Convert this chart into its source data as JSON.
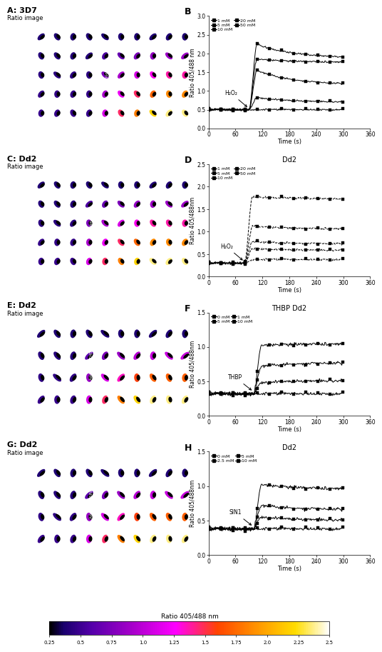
{
  "panel_B": {
    "title": "",
    "xlabel": "Time (s)",
    "ylabel": "Ratio 405/488 nm",
    "annotation": "H₂O₂",
    "ylim": [
      0.0,
      3.0
    ],
    "xlim": [
      0,
      360
    ],
    "xticks": [
      0,
      60,
      120,
      180,
      240,
      300,
      360
    ],
    "yticks": [
      0.0,
      0.5,
      1.0,
      1.5,
      2.0,
      2.5,
      3.0
    ],
    "legend_col1": [
      "1 mM",
      "5 mM"
    ],
    "legend_col2": [
      "10 mM",
      "20 mM",
      "50 mM"
    ],
    "t_add": 90,
    "series_keys": [
      "1mM",
      "5mM",
      "10mM",
      "20mM",
      "50mM"
    ],
    "series_pre": [
      0.5,
      0.5,
      0.5,
      0.5,
      0.5
    ],
    "series_peak": [
      0.5,
      0.82,
      1.55,
      1.85,
      2.25
    ],
    "series_post": [
      0.5,
      0.68,
      1.1,
      1.75,
      1.82
    ],
    "series_ls": [
      "-",
      "-",
      "-",
      "-",
      "-"
    ]
  },
  "panel_D": {
    "title": "Dd2",
    "xlabel": "Time (s)",
    "ylabel": "Ratio 405/488nm",
    "annotation": "H₂O₂",
    "ylim": [
      0.0,
      2.5
    ],
    "xlim": [
      0,
      360
    ],
    "xticks": [
      0,
      60,
      120,
      180,
      240,
      300,
      360
    ],
    "yticks": [
      0.0,
      0.5,
      1.0,
      1.5,
      2.0,
      2.5
    ],
    "legend_col1": [
      "1 mM",
      "5 mM"
    ],
    "legend_col2": [
      "10 mM",
      "20 mM",
      "50 mM"
    ],
    "t_add": 80,
    "series_keys": [
      "1mM",
      "5mM",
      "10mM",
      "20mM",
      "50mM"
    ],
    "series_pre": [
      0.3,
      0.3,
      0.3,
      0.3,
      0.3
    ],
    "series_peak": [
      0.38,
      0.62,
      0.78,
      1.12,
      1.78
    ],
    "series_post": [
      0.38,
      0.58,
      0.72,
      1.05,
      1.72
    ],
    "series_ls": [
      "--",
      "--",
      "--",
      "--",
      "--"
    ]
  },
  "panel_F": {
    "title": "THBP Dd2",
    "xlabel": "Time (s)",
    "ylabel": "Ratio 405/488nm",
    "annotation": "THBP",
    "ylim": [
      0.0,
      1.5
    ],
    "xlim": [
      0,
      360
    ],
    "xticks": [
      0,
      60,
      120,
      180,
      240,
      300,
      360
    ],
    "yticks": [
      0.0,
      0.5,
      1.0,
      1.5
    ],
    "legend_col1": [
      "0 mM",
      "5 mM"
    ],
    "legend_col2": [
      "1 mM",
      "10 mM"
    ],
    "t_add": 100,
    "series_keys": [
      "0mM",
      "1mM",
      "5mM",
      "10mM"
    ],
    "series_pre": [
      0.32,
      0.32,
      0.32,
      0.32
    ],
    "series_peak": [
      0.32,
      0.48,
      0.72,
      1.02
    ],
    "series_post": [
      0.32,
      0.52,
      0.78,
      1.05
    ],
    "series_ls": [
      "-",
      "-",
      "-",
      "-"
    ]
  },
  "panel_H": {
    "title": "Dd2",
    "xlabel": "Time (s)",
    "ylabel": "Ratio 405/488nm",
    "annotation": "SIN1",
    "ylim": [
      0.0,
      1.5
    ],
    "xlim": [
      0,
      360
    ],
    "xticks": [
      0,
      60,
      120,
      180,
      240,
      300,
      360
    ],
    "yticks": [
      0.0,
      0.5,
      1.0,
      1.5
    ],
    "legend_col1": [
      "0 mM",
      "2.5 mM"
    ],
    "legend_col2": [
      "5 mM",
      "10 mM"
    ],
    "t_add": 100,
    "series_keys": [
      "0mM",
      "2.5mM",
      "5mM",
      "10mM"
    ],
    "series_pre": [
      0.38,
      0.38,
      0.38,
      0.38
    ],
    "series_peak": [
      0.38,
      0.55,
      0.72,
      1.02
    ],
    "series_post": [
      0.38,
      0.5,
      0.65,
      0.95
    ],
    "series_ls": [
      "-",
      "-",
      "-",
      "-"
    ]
  },
  "colorbar_ticks": [
    0.25,
    0.5,
    0.75,
    1.0,
    1.25,
    1.5,
    1.75,
    2.0,
    2.25,
    2.5
  ],
  "colorbar_title": "Ratio 405/488 nm"
}
